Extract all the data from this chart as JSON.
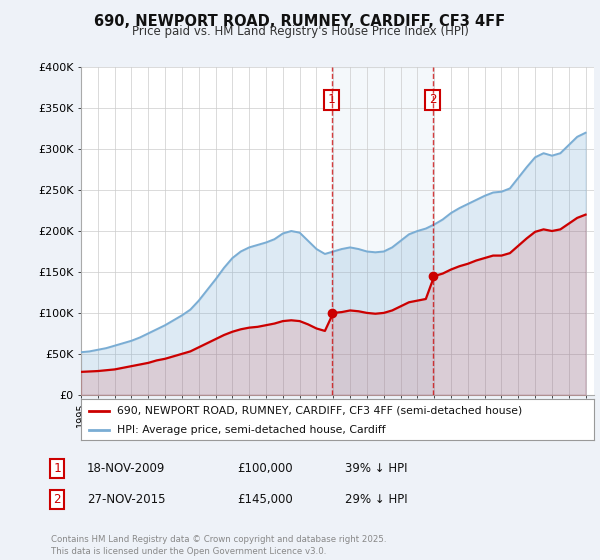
{
  "title": "690, NEWPORT ROAD, RUMNEY, CARDIFF, CF3 4FF",
  "subtitle": "Price paid vs. HM Land Registry's House Price Index (HPI)",
  "hpi_label": "HPI: Average price, semi-detached house, Cardiff",
  "property_label": "690, NEWPORT ROAD, RUMNEY, CARDIFF, CF3 4FF (semi-detached house)",
  "footnote": "Contains HM Land Registry data © Crown copyright and database right 2025.\nThis data is licensed under the Open Government Licence v3.0.",
  "sale_1_date": "18-NOV-2009",
  "sale_1_price": 100000,
  "sale_1_pct": "39% ↓ HPI",
  "sale_2_date": "27-NOV-2015",
  "sale_2_price": 145000,
  "sale_2_pct": "29% ↓ HPI",
  "property_color": "#cc0000",
  "hpi_color": "#7aadd4",
  "sale_marker_color": "#cc0000",
  "vline_color": "#cc0000",
  "background_color": "#eef2f8",
  "plot_bg_color": "#ffffff",
  "ylim": [
    0,
    400000
  ],
  "yticks": [
    0,
    50000,
    100000,
    150000,
    200000,
    250000,
    300000,
    350000,
    400000
  ],
  "sale1_year": 2009.9,
  "sale2_year": 2015.9,
  "xmin": 1995,
  "xmax": 2025.5,
  "hpi_years": [
    1995.0,
    1995.5,
    1996.0,
    1996.5,
    1997.0,
    1997.5,
    1998.0,
    1998.5,
    1999.0,
    1999.5,
    2000.0,
    2000.5,
    2001.0,
    2001.5,
    2002.0,
    2002.5,
    2003.0,
    2003.5,
    2004.0,
    2004.5,
    2005.0,
    2005.5,
    2006.0,
    2006.5,
    2007.0,
    2007.5,
    2008.0,
    2008.5,
    2009.0,
    2009.5,
    2010.0,
    2010.5,
    2011.0,
    2011.5,
    2012.0,
    2012.5,
    2013.0,
    2013.5,
    2014.0,
    2014.5,
    2015.0,
    2015.5,
    2016.0,
    2016.5,
    2017.0,
    2017.5,
    2018.0,
    2018.5,
    2019.0,
    2019.5,
    2020.0,
    2020.5,
    2021.0,
    2021.5,
    2022.0,
    2022.5,
    2023.0,
    2023.5,
    2024.0,
    2024.5,
    2025.0
  ],
  "hpi_values": [
    52000,
    53000,
    55000,
    57000,
    60000,
    63000,
    66000,
    70000,
    75000,
    80000,
    85000,
    91000,
    97000,
    104000,
    115000,
    128000,
    141000,
    155000,
    167000,
    175000,
    180000,
    183000,
    186000,
    190000,
    197000,
    200000,
    198000,
    188000,
    178000,
    172000,
    175000,
    178000,
    180000,
    178000,
    175000,
    174000,
    175000,
    180000,
    188000,
    196000,
    200000,
    203000,
    208000,
    214000,
    222000,
    228000,
    233000,
    238000,
    243000,
    247000,
    248000,
    252000,
    265000,
    278000,
    290000,
    295000,
    292000,
    295000,
    305000,
    315000,
    320000
  ],
  "prop_years": [
    1995.0,
    1995.5,
    1996.0,
    1996.5,
    1997.0,
    1997.5,
    1998.0,
    1998.5,
    1999.0,
    1999.5,
    2000.0,
    2000.5,
    2001.0,
    2001.5,
    2002.0,
    2002.5,
    2003.0,
    2003.5,
    2004.0,
    2004.5,
    2005.0,
    2005.5,
    2006.0,
    2006.5,
    2007.0,
    2007.5,
    2008.0,
    2008.5,
    2009.0,
    2009.5,
    2010.0,
    2010.5,
    2011.0,
    2011.5,
    2012.0,
    2012.5,
    2013.0,
    2013.5,
    2014.0,
    2014.5,
    2015.0,
    2015.5,
    2016.0,
    2016.5,
    2017.0,
    2017.5,
    2018.0,
    2018.5,
    2019.0,
    2019.5,
    2020.0,
    2020.5,
    2021.0,
    2021.5,
    2022.0,
    2022.5,
    2023.0,
    2023.5,
    2024.0,
    2024.5,
    2025.0
  ],
  "prop_values": [
    28000,
    28500,
    29000,
    30000,
    31000,
    33000,
    35000,
    37000,
    39000,
    42000,
    44000,
    47000,
    50000,
    53000,
    58000,
    63000,
    68000,
    73000,
    77000,
    80000,
    82000,
    83000,
    85000,
    87000,
    90000,
    91000,
    90000,
    86000,
    81000,
    78000,
    100000,
    101000,
    103000,
    102000,
    100000,
    99000,
    100000,
    103000,
    108000,
    113000,
    115000,
    117000,
    145000,
    148000,
    153000,
    157000,
    160000,
    164000,
    167000,
    170000,
    170000,
    173000,
    182000,
    191000,
    199000,
    202000,
    200000,
    202000,
    209000,
    216000,
    220000
  ]
}
